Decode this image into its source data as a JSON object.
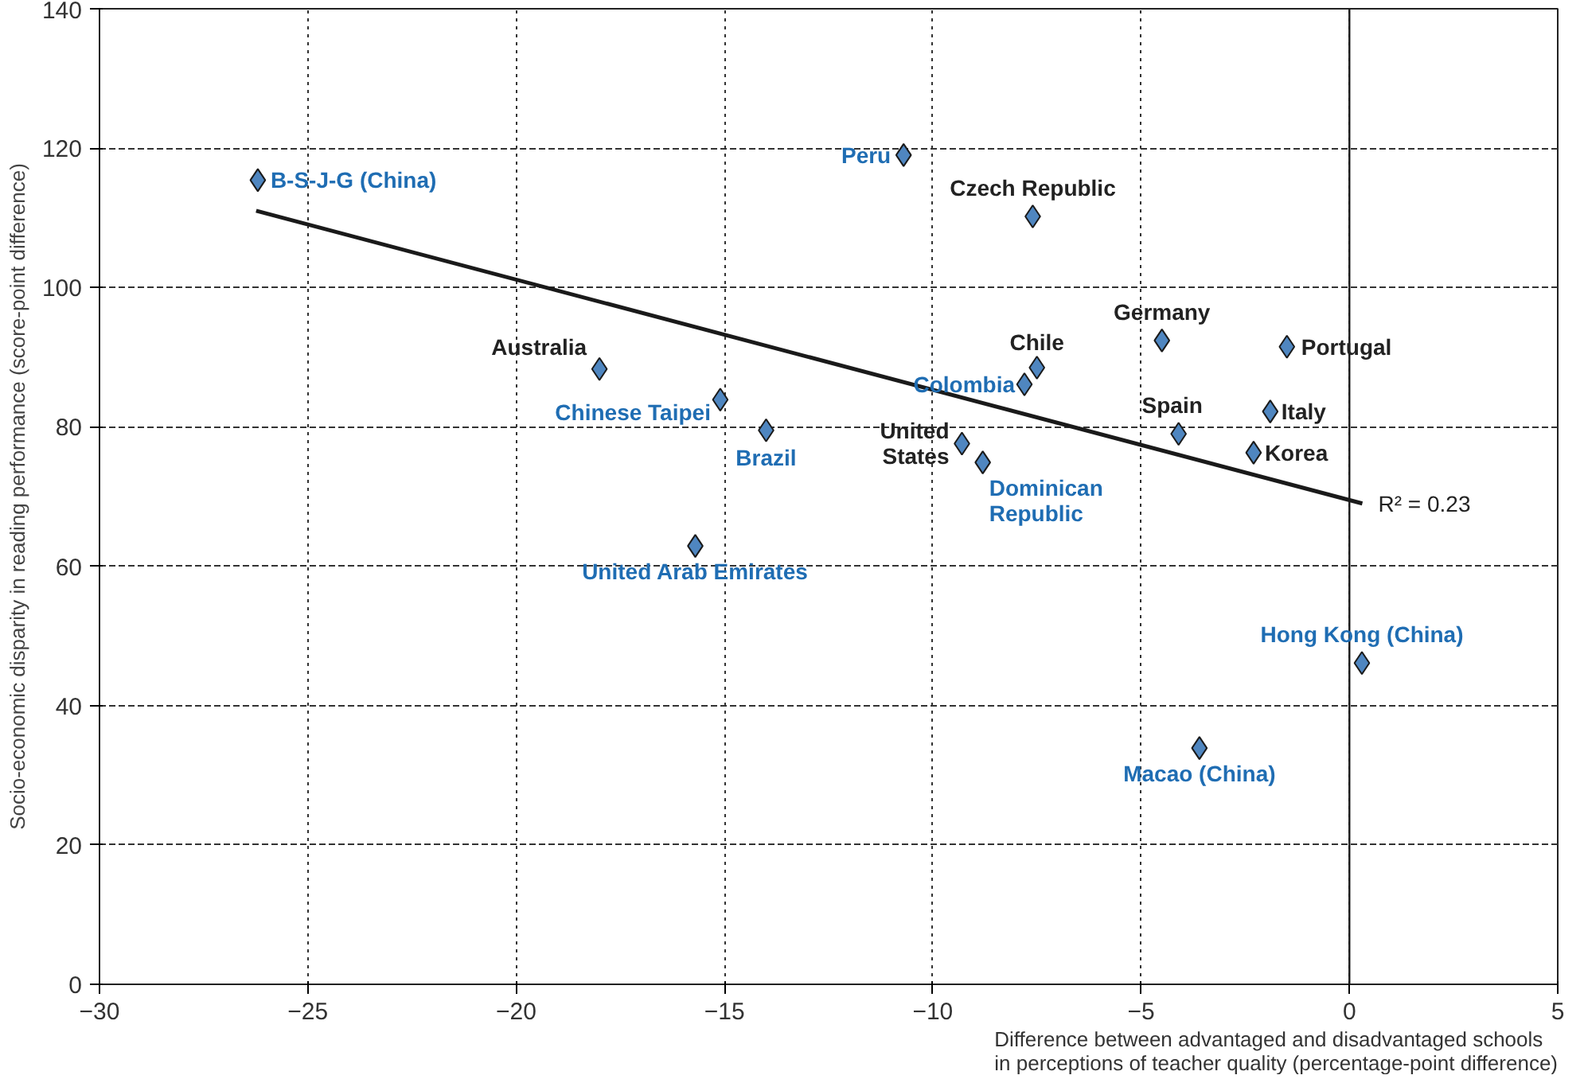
{
  "chart_data": {
    "type": "scatter",
    "xlabel": "Difference between advantaged and disadvantaged schools\nin perceptions of teacher quality (percentage-point difference)",
    "ylabel": "Socio-economic disparity in reading performance (score-point difference)",
    "xlim": [
      -30,
      5
    ],
    "xticks": [
      -30,
      -25,
      -20,
      -15,
      -10,
      -5,
      0,
      5
    ],
    "ylim": [
      0,
      140
    ],
    "yticks": [
      0,
      20,
      40,
      60,
      80,
      100,
      120,
      140
    ],
    "grid": true,
    "marker": "diamond",
    "series": [
      {
        "color": "#4f86c0",
        "x": [
          -7.6,
          -4.5,
          -1.5,
          -18.0,
          -7.5,
          -1.9,
          -4.1,
          -2.3,
          -9.3
        ],
        "values": [
          110.2,
          92.4,
          91.5,
          88.3,
          88.5,
          82.2,
          79.0,
          76.3,
          77.6
        ],
        "value_labels": [
          "Czech Republic",
          "Germany",
          "Portugal",
          "Australia",
          "Chile",
          "Italy",
          "Spain",
          "Korea",
          "United\nStates"
        ]
      },
      {
        "color": "#4f86c0",
        "x": [
          -26.2,
          -10.7,
          -7.8,
          -15.1,
          -14.0,
          -8.8,
          -15.7,
          0.3,
          -3.6
        ],
        "values": [
          115.4,
          119.0,
          86.1,
          83.9,
          79.5,
          74.9,
          62.9,
          46.1,
          33.9
        ],
        "value_labels": [
          "B-S-J-G (China)",
          "Peru",
          "Colombia",
          "Chinese Taipei",
          "Brazil",
          "Dominican\nRepublic",
          "United Arab Emirates",
          "Hong Kong (China)",
          "Macao (China)"
        ]
      },
      {
        "type": "line",
        "marker": "none",
        "color": "#1a1a1a",
        "x": [
          -26.24,
          0.31
        ],
        "values": [
          111.0,
          69.0
        ]
      }
    ],
    "ref_lines": [
      {
        "axis": "x",
        "value": 0,
        "color": "#1a1a1a"
      }
    ],
    "annotations": [
      {
        "text": "R² = 0.23",
        "x": 0.31,
        "y": 69
      }
    ]
  }
}
